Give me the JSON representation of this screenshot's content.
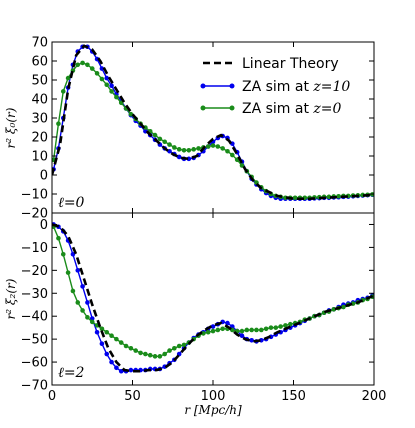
{
  "chart_data": [
    {
      "type": "line",
      "panel": "top",
      "annotation": "ℓ=0",
      "ylabel": "r² ξ₀(r)",
      "xlim": [
        0,
        200
      ],
      "ylim": [
        -20,
        70
      ],
      "xticks": [
        0,
        50,
        100,
        150,
        200
      ],
      "yticks": [
        -20,
        -10,
        0,
        10,
        20,
        30,
        40,
        50,
        60,
        70
      ],
      "legend": {
        "placement": "top-right",
        "entries": [
          {
            "prefix": "Linear Theory",
            "math": "",
            "style": "dashed"
          },
          {
            "prefix": "ZA sim at ",
            "math": "z=10",
            "style": "line-marker-blue"
          },
          {
            "prefix": "ZA sim at ",
            "math": "z=0",
            "style": "line-marker-green"
          }
        ]
      },
      "series": [
        {
          "name": "Linear Theory",
          "color": "#000000",
          "style": "dashed",
          "x": [
            0,
            5,
            10,
            15,
            20,
            25,
            30,
            35,
            40,
            45,
            50,
            55,
            60,
            65,
            70,
            75,
            80,
            85,
            90,
            95,
            100,
            105,
            110,
            115,
            120,
            125,
            130,
            140,
            150,
            160,
            170,
            180,
            190,
            200
          ],
          "y": [
            0,
            16,
            45,
            63,
            68,
            66,
            60,
            52,
            45,
            38,
            32,
            27,
            22,
            18,
            14,
            11,
            9,
            8.5,
            10,
            15,
            19,
            21,
            18,
            11,
            3,
            -3,
            -7,
            -11,
            -12.5,
            -12.5,
            -12,
            -11.5,
            -11,
            -10.5
          ]
        },
        {
          "name": "ZA sim at z=10",
          "color": "#0000ee",
          "x": [
            1,
            4,
            7,
            10,
            13,
            16,
            19,
            22,
            25,
            28,
            31,
            34,
            37,
            40,
            43,
            46,
            49,
            52,
            55,
            58,
            61,
            64,
            67,
            70,
            73,
            76,
            79,
            82,
            85,
            88,
            91,
            94,
            97,
            100,
            103,
            106,
            109,
            112,
            115,
            118,
            121,
            124,
            127,
            130,
            133,
            136,
            139,
            142,
            145,
            148,
            151,
            154,
            157,
            160,
            163,
            166,
            169,
            172,
            175,
            178,
            181,
            184,
            187,
            190,
            193,
            196,
            199
          ],
          "y": [
            3,
            14,
            30,
            46,
            58,
            65,
            67.5,
            67.5,
            65,
            61,
            56,
            51,
            47,
            42.5,
            39,
            35,
            31.5,
            28.5,
            26,
            23,
            21,
            18.5,
            16,
            14,
            12.5,
            11,
            9.5,
            8.5,
            8.5,
            9,
            10.5,
            12.5,
            15,
            17.5,
            19.5,
            20.5,
            19.5,
            16.5,
            12,
            7,
            2,
            -2,
            -5,
            -7.5,
            -9.5,
            -11,
            -12,
            -12.5,
            -12.5,
            -12.5,
            -12.5,
            -12.5,
            -12.5,
            -12.5,
            -12.3,
            -12.2,
            -12,
            -12,
            -11.8,
            -11.7,
            -11.5,
            -11.4,
            -11.2,
            -11,
            -10.8,
            -10.6,
            -10.4
          ]
        },
        {
          "name": "ZA sim at z=0",
          "color": "#1a8c1a",
          "x": [
            1,
            4,
            7,
            10,
            13,
            16,
            19,
            22,
            25,
            28,
            31,
            34,
            37,
            40,
            43,
            46,
            49,
            52,
            55,
            58,
            61,
            64,
            67,
            70,
            73,
            76,
            79,
            82,
            85,
            88,
            91,
            94,
            97,
            100,
            103,
            106,
            109,
            112,
            115,
            118,
            121,
            124,
            127,
            130,
            133,
            136,
            139,
            142,
            145,
            148,
            151,
            154,
            157,
            160,
            163,
            166,
            169,
            172,
            175,
            178,
            181,
            184,
            187,
            190,
            193,
            196,
            199
          ],
          "y": [
            8,
            27,
            44,
            51,
            55,
            58,
            59,
            58,
            56,
            53.5,
            50.5,
            47.5,
            44,
            41,
            38,
            35,
            32,
            29.5,
            27,
            25,
            23,
            21,
            19,
            17.5,
            16,
            14.5,
            13.5,
            13,
            13,
            13.5,
            14,
            14.5,
            15,
            15.5,
            15,
            14,
            12.5,
            10.5,
            8,
            5,
            2,
            -1,
            -4,
            -6.5,
            -8.5,
            -10,
            -11,
            -11.5,
            -12,
            -12,
            -12,
            -12,
            -12,
            -12,
            -11.8,
            -11.7,
            -11.5,
            -11.5,
            -11.3,
            -11.2,
            -11,
            -11,
            -10.8,
            -10.7,
            -10.5,
            -10.4,
            -10.2
          ]
        }
      ]
    },
    {
      "type": "line",
      "panel": "bottom",
      "annotation": "ℓ=2",
      "ylabel": "r² ξ₂(r)",
      "xlabel": "r [Mpc/h]",
      "xlim": [
        0,
        200
      ],
      "ylim": [
        -70,
        5
      ],
      "xticks": [
        0,
        50,
        100,
        150,
        200
      ],
      "yticks": [
        -70,
        -60,
        -50,
        -40,
        -30,
        -20,
        -10,
        0
      ],
      "series": [
        {
          "name": "Linear Theory",
          "color": "#000000",
          "style": "dashed",
          "x": [
            0,
            5,
            10,
            15,
            20,
            25,
            30,
            35,
            40,
            45,
            50,
            55,
            60,
            65,
            70,
            75,
            80,
            85,
            90,
            95,
            100,
            105,
            110,
            115,
            120,
            125,
            130,
            135,
            140,
            150,
            160,
            170,
            180,
            190,
            200
          ],
          "y": [
            0,
            -1,
            -5,
            -13,
            -24,
            -35,
            -45,
            -54,
            -60,
            -63.5,
            -64,
            -64,
            -63.5,
            -63.5,
            -62.5,
            -60,
            -56,
            -52,
            -48.5,
            -46,
            -44,
            -43,
            -45,
            -48,
            -50,
            -51,
            -50.5,
            -49,
            -47,
            -44,
            -41,
            -38,
            -36,
            -34,
            -31
          ]
        },
        {
          "name": "ZA sim at z=10",
          "color": "#0000ee",
          "x": [
            1,
            4,
            7,
            10,
            13,
            16,
            19,
            22,
            25,
            28,
            31,
            34,
            37,
            40,
            43,
            46,
            49,
            52,
            55,
            58,
            61,
            64,
            67,
            70,
            73,
            76,
            79,
            82,
            85,
            88,
            91,
            94,
            97,
            100,
            103,
            106,
            109,
            112,
            115,
            118,
            121,
            124,
            127,
            130,
            133,
            136,
            139,
            142,
            145,
            148,
            151,
            154,
            157,
            160,
            163,
            166,
            169,
            172,
            175,
            178,
            181,
            184,
            187,
            190,
            193,
            196,
            199
          ],
          "y": [
            0,
            -1,
            -3,
            -7,
            -13,
            -20,
            -27,
            -34,
            -41,
            -47,
            -52,
            -56.5,
            -60,
            -62.5,
            -64,
            -64,
            -63.5,
            -63.5,
            -63.5,
            -63.5,
            -63,
            -63,
            -63,
            -62,
            -60.5,
            -59,
            -56.5,
            -54,
            -51.5,
            -49.5,
            -48,
            -47,
            -45.5,
            -44.5,
            -43.5,
            -42.5,
            -43,
            -44.5,
            -46.5,
            -48.5,
            -50,
            -50.5,
            -51,
            -50.5,
            -50,
            -49,
            -48,
            -47,
            -46,
            -45,
            -44,
            -43,
            -42,
            -41,
            -40,
            -39.5,
            -38.5,
            -37.5,
            -37,
            -36,
            -35,
            -34.5,
            -34,
            -33,
            -32.5,
            -32,
            -31
          ]
        },
        {
          "name": "ZA sim at z=0",
          "color": "#1a8c1a",
          "x": [
            1,
            4,
            7,
            10,
            13,
            16,
            19,
            22,
            25,
            28,
            31,
            34,
            37,
            40,
            43,
            46,
            49,
            52,
            55,
            58,
            61,
            64,
            67,
            70,
            73,
            76,
            79,
            82,
            85,
            88,
            91,
            94,
            97,
            100,
            103,
            106,
            109,
            112,
            115,
            118,
            121,
            124,
            127,
            130,
            133,
            136,
            139,
            142,
            145,
            148,
            151,
            154,
            157,
            160,
            163,
            166,
            169,
            172,
            175,
            178,
            181,
            184,
            187,
            190,
            193,
            196,
            199
          ],
          "y": [
            -1,
            -6,
            -13,
            -21,
            -29,
            -34,
            -37.5,
            -40.5,
            -42.5,
            -44,
            -45.5,
            -47,
            -48.5,
            -50,
            -51.5,
            -53,
            -54,
            -55,
            -56,
            -56.5,
            -57,
            -57.5,
            -57.5,
            -56.5,
            -55,
            -54,
            -53,
            -52.5,
            -51.5,
            -50,
            -48.5,
            -47.5,
            -47,
            -46.5,
            -46,
            -45.5,
            -45.5,
            -46,
            -46.5,
            -46.5,
            -46,
            -46,
            -46,
            -46,
            -45.5,
            -45,
            -45,
            -44.5,
            -44,
            -43.5,
            -43,
            -42.5,
            -41.5,
            -41,
            -40,
            -39.5,
            -38.5,
            -38,
            -37,
            -36.5,
            -36,
            -35,
            -34.5,
            -34,
            -33,
            -32.5,
            -31.5
          ]
        }
      ]
    }
  ]
}
